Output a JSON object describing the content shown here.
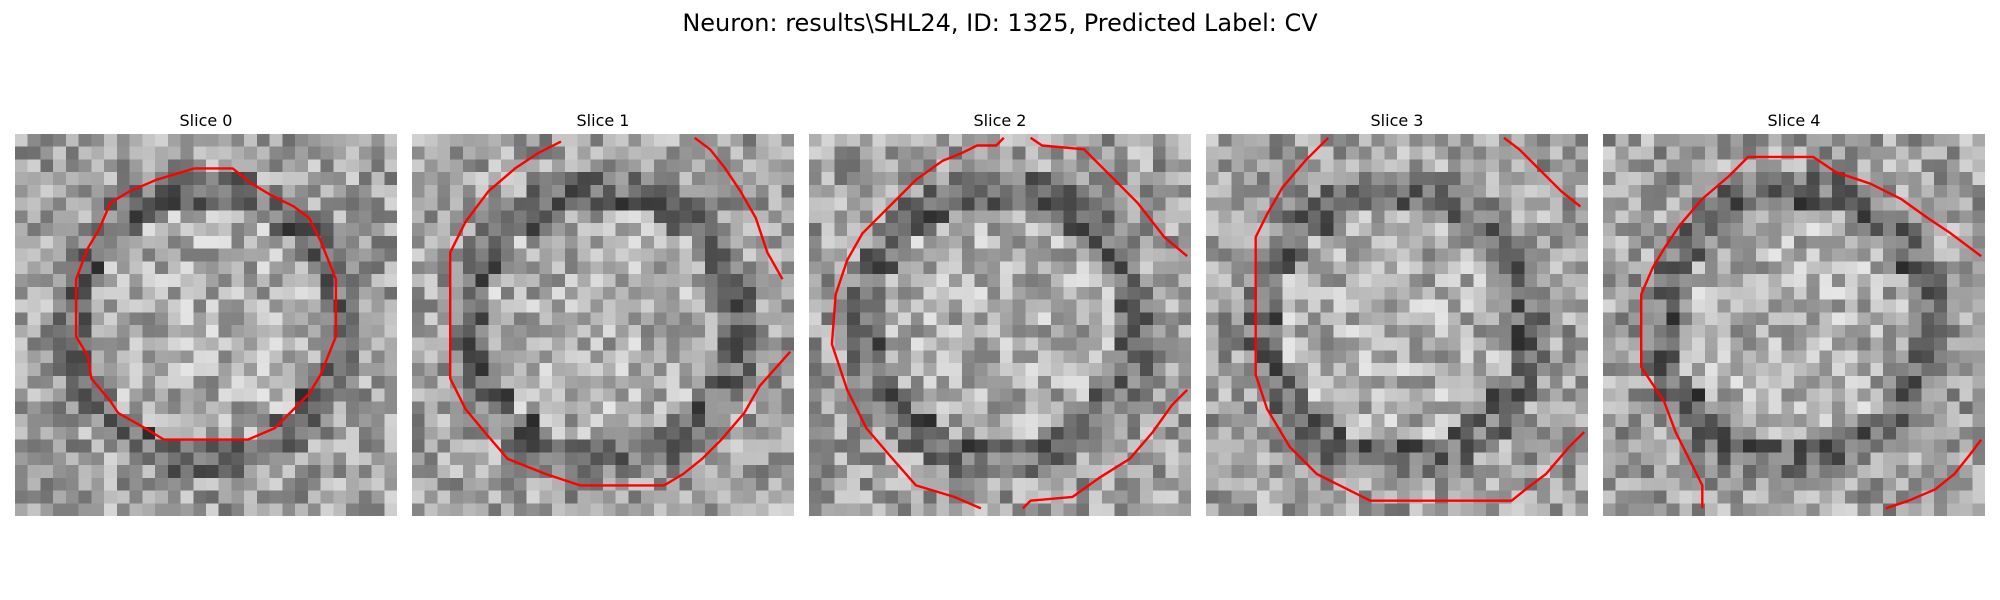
{
  "figure": {
    "title": "Neuron: results\\SHL24, ID: 1325, Predicted Label: CV",
    "contour_color": "#ff0000"
  },
  "panels": [
    {
      "title": "Slice 0",
      "seed": 11,
      "contour": "circle"
    },
    {
      "title": "Slice 1",
      "seed": 23,
      "contour": "large-octagon"
    },
    {
      "title": "Slice 2",
      "seed": 37,
      "contour": "large-open"
    },
    {
      "title": "Slice 3",
      "seed": 41,
      "contour": "left-open"
    },
    {
      "title": "Slice 4",
      "seed": 53,
      "contour": "right-open"
    }
  ]
}
